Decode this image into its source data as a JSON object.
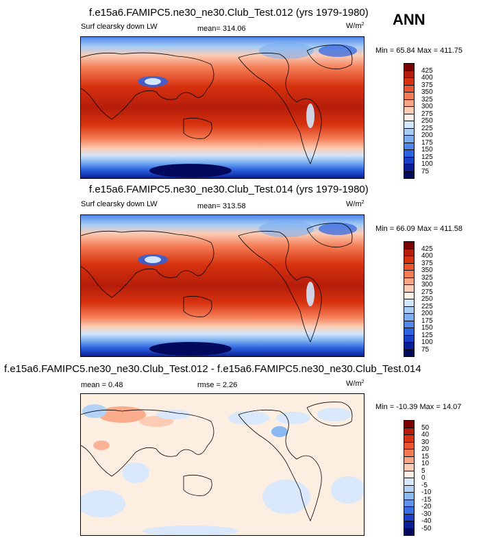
{
  "season": "ANN",
  "panels": [
    {
      "title": "f.e15a6.FAMIPC5.ne30_ne30.Club_Test.012 (yrs 1979-1980)",
      "left_label": "Surf clearsky down LW",
      "mid_label": "mean= 314.06",
      "units": "W/m",
      "units_sup": "2",
      "minmax": "Min =  65.84 Max = 411.75",
      "levels": [
        "425",
        "400",
        "375",
        "350",
        "325",
        "300",
        "275",
        "250",
        "225",
        "200",
        "175",
        "150",
        "125",
        "100",
        "75"
      ],
      "colors": [
        "#7b0000",
        "#b51d0a",
        "#d7320f",
        "#ea5530",
        "#f47c55",
        "#f9a483",
        "#fbcbb4",
        "#fdf0e6",
        "#d2e6fb",
        "#a8cdf5",
        "#7aaef0",
        "#4f88ea",
        "#2c63e0",
        "#1a3fc8",
        "#0a1f95",
        "#030a5e"
      ],
      "fill": "warm"
    },
    {
      "title": "f.e15a6.FAMIPC5.ne30_ne30.Club_Test.014 (yrs 1979-1980)",
      "left_label": "Surf clearsky down LW",
      "mid_label": "mean= 313.58",
      "units": "W/m",
      "units_sup": "2",
      "minmax": "Min =  66.09 Max = 411.58",
      "levels": [
        "425",
        "400",
        "375",
        "350",
        "325",
        "300",
        "275",
        "250",
        "225",
        "200",
        "175",
        "150",
        "125",
        "100",
        "75"
      ],
      "colors": [
        "#7b0000",
        "#b51d0a",
        "#d7320f",
        "#ea5530",
        "#f47c55",
        "#f9a483",
        "#fbcbb4",
        "#fdf0e6",
        "#d2e6fb",
        "#a8cdf5",
        "#7aaef0",
        "#4f88ea",
        "#2c63e0",
        "#1a3fc8",
        "#0a1f95",
        "#030a5e"
      ],
      "fill": "warm"
    },
    {
      "title": "f.e15a6.FAMIPC5.ne30_ne30.Club_Test.012 - f.e15a6.FAMIPC5.ne30_ne30.Club_Test.014",
      "left_label": "mean =   0.48",
      "mid_label": "rmse =   2.26",
      "units": "W/m",
      "units_sup": "2",
      "minmax": "Min = -10.39 Max =  14.07",
      "levels": [
        "50",
        "40",
        "30",
        "20",
        "15",
        "10",
        "5",
        "0",
        "-5",
        "-10",
        "-15",
        "-20",
        "-30",
        "-40",
        "-50"
      ],
      "colors": [
        "#7b0000",
        "#b51d0a",
        "#d7320f",
        "#ea5530",
        "#f47c55",
        "#f9a483",
        "#fbcbb4",
        "#fdeee2",
        "#d9e9fb",
        "#b3d3f6",
        "#8ab8f1",
        "#5f93eb",
        "#376ee2",
        "#1a3fc8",
        "#0a1f95",
        "#030a5e"
      ],
      "fill": "diff"
    }
  ],
  "chart_data": [
    {
      "type": "heatmap",
      "title": "f.e15a6.FAMIPC5.ne30_ne30.Club_Test.012 (yrs 1979-1980)",
      "variable": "Surf clearsky down LW",
      "units": "W/m2",
      "mean": 314.06,
      "min": 65.84,
      "max": 411.75,
      "contour_levels": [
        75,
        100,
        125,
        150,
        175,
        200,
        225,
        250,
        275,
        300,
        325,
        350,
        375,
        400,
        425
      ]
    },
    {
      "type": "heatmap",
      "title": "f.e15a6.FAMIPC5.ne30_ne30.Club_Test.014 (yrs 1979-1980)",
      "variable": "Surf clearsky down LW",
      "units": "W/m2",
      "mean": 313.58,
      "min": 66.09,
      "max": 411.58,
      "contour_levels": [
        75,
        100,
        125,
        150,
        175,
        200,
        225,
        250,
        275,
        300,
        325,
        350,
        375,
        400,
        425
      ]
    },
    {
      "type": "heatmap",
      "title": "f.e15a6.FAMIPC5.ne30_ne30.Club_Test.012 - f.e15a6.FAMIPC5.ne30_ne30.Club_Test.014",
      "units": "W/m2",
      "mean": 0.48,
      "rmse": 2.26,
      "min": -10.39,
      "max": 14.07,
      "contour_levels": [
        -50,
        -40,
        -30,
        -20,
        -15,
        -10,
        -5,
        0,
        5,
        10,
        15,
        20,
        30,
        40,
        50
      ]
    }
  ]
}
